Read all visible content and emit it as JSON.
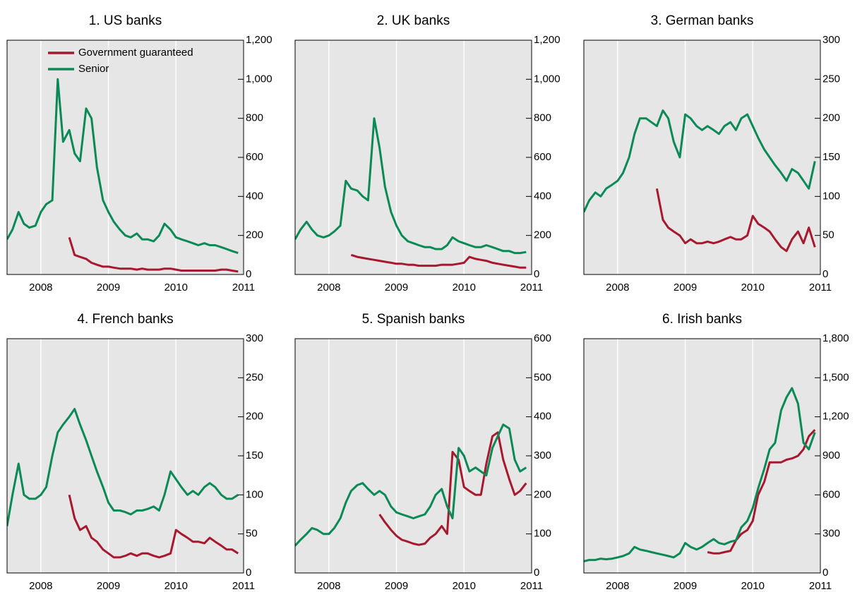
{
  "chart_data": [
    {
      "type": "line",
      "title": "1. US banks",
      "legend": "upper left",
      "x": [
        2007.5,
        2007.58,
        2007.67,
        2007.75,
        2007.83,
        2007.92,
        2008,
        2008.08,
        2008.17,
        2008.25,
        2008.33,
        2008.42,
        2008.5,
        2008.58,
        2008.67,
        2008.75,
        2008.83,
        2008.92,
        2009,
        2009.08,
        2009.17,
        2009.25,
        2009.33,
        2009.42,
        2009.5,
        2009.58,
        2009.67,
        2009.75,
        2009.83,
        2009.92,
        2010,
        2010.08,
        2010.17,
        2010.25,
        2010.33,
        2010.42,
        2010.5,
        2010.58,
        2010.67,
        2010.75,
        2010.83,
        2010.92
      ],
      "xlim": [
        2007.5,
        2011
      ],
      "xticks": [
        2008,
        2009,
        2010,
        2011
      ],
      "grid": "x",
      "ylim": [
        0,
        1200
      ],
      "yticks": [
        0,
        200,
        400,
        600,
        800,
        {
          "value": 1000,
          "label": "1,000"
        },
        {
          "value": 1200,
          "label": "1,200"
        }
      ],
      "series": [
        {
          "name": "Government guaranteed",
          "color": "#a6192e",
          "values": [
            null,
            null,
            null,
            null,
            null,
            null,
            null,
            null,
            null,
            null,
            null,
            190,
            100,
            90,
            80,
            60,
            50,
            40,
            40,
            35,
            30,
            30,
            30,
            25,
            30,
            25,
            25,
            25,
            30,
            30,
            25,
            20,
            20,
            20,
            20,
            20,
            20,
            20,
            25,
            25,
            20,
            15
          ]
        },
        {
          "name": "Senior",
          "color": "#0b8a55",
          "values": [
            180,
            230,
            320,
            260,
            240,
            250,
            320,
            360,
            380,
            1000,
            680,
            740,
            620,
            580,
            850,
            800,
            550,
            380,
            320,
            270,
            230,
            200,
            190,
            210,
            180,
            180,
            170,
            200,
            260,
            230,
            190,
            180,
            170,
            160,
            150,
            160,
            150,
            150,
            140,
            130,
            120,
            110
          ]
        }
      ]
    },
    {
      "type": "line",
      "title": "2. UK banks",
      "x": [
        2007.5,
        2007.58,
        2007.67,
        2007.75,
        2007.83,
        2007.92,
        2008,
        2008.08,
        2008.17,
        2008.25,
        2008.33,
        2008.42,
        2008.5,
        2008.58,
        2008.67,
        2008.75,
        2008.83,
        2008.92,
        2009,
        2009.08,
        2009.17,
        2009.25,
        2009.33,
        2009.42,
        2009.5,
        2009.58,
        2009.67,
        2009.75,
        2009.83,
        2009.92,
        2010,
        2010.08,
        2010.17,
        2010.25,
        2010.33,
        2010.42,
        2010.5,
        2010.58,
        2010.67,
        2010.75,
        2010.83,
        2010.92
      ],
      "xlim": [
        2007.5,
        2011
      ],
      "xticks": [
        2008,
        2009,
        2010,
        2011
      ],
      "grid": "x",
      "ylim": [
        0,
        1200
      ],
      "yticks": [
        0,
        200,
        400,
        600,
        800,
        {
          "value": 1000,
          "label": "1,000"
        },
        {
          "value": 1200,
          "label": "1,200"
        }
      ],
      "series": [
        {
          "color": "#a6192e",
          "values": [
            null,
            null,
            null,
            null,
            null,
            null,
            null,
            null,
            null,
            null,
            100,
            90,
            85,
            80,
            75,
            70,
            65,
            60,
            55,
            55,
            50,
            50,
            45,
            45,
            45,
            45,
            50,
            50,
            50,
            55,
            60,
            90,
            80,
            75,
            70,
            60,
            55,
            50,
            45,
            40,
            35,
            35
          ]
        },
        {
          "color": "#0b8a55",
          "values": [
            180,
            230,
            270,
            230,
            200,
            190,
            200,
            220,
            250,
            480,
            440,
            430,
            400,
            380,
            800,
            650,
            450,
            320,
            250,
            200,
            170,
            160,
            150,
            140,
            140,
            130,
            130,
            150,
            190,
            170,
            160,
            150,
            140,
            140,
            150,
            140,
            130,
            120,
            120,
            110,
            110,
            115
          ]
        }
      ]
    },
    {
      "type": "line",
      "title": "3. German banks",
      "x": [
        2007.5,
        2007.58,
        2007.67,
        2007.75,
        2007.83,
        2007.92,
        2008,
        2008.08,
        2008.17,
        2008.25,
        2008.33,
        2008.42,
        2008.5,
        2008.58,
        2008.67,
        2008.75,
        2008.83,
        2008.92,
        2009,
        2009.08,
        2009.17,
        2009.25,
        2009.33,
        2009.42,
        2009.5,
        2009.58,
        2009.67,
        2009.75,
        2009.83,
        2009.92,
        2010,
        2010.08,
        2010.17,
        2010.25,
        2010.33,
        2010.42,
        2010.5,
        2010.58,
        2010.67,
        2010.75,
        2010.83,
        2010.92
      ],
      "xlim": [
        2007.5,
        2011
      ],
      "xticks": [
        2008,
        2009,
        2010,
        2011
      ],
      "grid": "x",
      "ylim": [
        0,
        300
      ],
      "yticks": [
        0,
        50,
        100,
        150,
        200,
        250,
        300
      ],
      "series": [
        {
          "color": "#a6192e",
          "values": [
            null,
            null,
            null,
            null,
            null,
            null,
            null,
            null,
            null,
            null,
            null,
            null,
            null,
            110,
            70,
            60,
            55,
            50,
            40,
            45,
            40,
            40,
            42,
            40,
            42,
            45,
            48,
            45,
            45,
            50,
            75,
            65,
            60,
            55,
            45,
            35,
            30,
            45,
            55,
            40,
            60,
            35
          ]
        },
        {
          "color": "#0b8a55",
          "values": [
            80,
            95,
            105,
            100,
            110,
            115,
            120,
            130,
            150,
            180,
            200,
            200,
            195,
            190,
            210,
            200,
            170,
            150,
            205,
            200,
            190,
            185,
            190,
            185,
            180,
            190,
            195,
            185,
            200,
            205,
            190,
            175,
            160,
            150,
            140,
            130,
            120,
            135,
            130,
            120,
            110,
            145
          ]
        }
      ]
    },
    {
      "type": "line",
      "title": "4. French banks",
      "x": [
        2007.5,
        2007.58,
        2007.67,
        2007.75,
        2007.83,
        2007.92,
        2008,
        2008.08,
        2008.17,
        2008.25,
        2008.33,
        2008.42,
        2008.5,
        2008.58,
        2008.67,
        2008.75,
        2008.83,
        2008.92,
        2009,
        2009.08,
        2009.17,
        2009.25,
        2009.33,
        2009.42,
        2009.5,
        2009.58,
        2009.67,
        2009.75,
        2009.83,
        2009.92,
        2010,
        2010.08,
        2010.17,
        2010.25,
        2010.33,
        2010.42,
        2010.5,
        2010.58,
        2010.67,
        2010.75,
        2010.83,
        2010.92
      ],
      "xlim": [
        2007.5,
        2011
      ],
      "xticks": [
        2008,
        2009,
        2010,
        2011
      ],
      "grid": "x",
      "ylim": [
        0,
        300
      ],
      "yticks": [
        0,
        50,
        100,
        150,
        200,
        250,
        300
      ],
      "series": [
        {
          "color": "#a6192e",
          "values": [
            null,
            null,
            null,
            null,
            null,
            null,
            null,
            null,
            null,
            null,
            null,
            100,
            70,
            55,
            60,
            45,
            40,
            30,
            25,
            20,
            20,
            22,
            25,
            22,
            25,
            25,
            22,
            20,
            22,
            25,
            55,
            50,
            45,
            40,
            40,
            38,
            45,
            40,
            35,
            30,
            30,
            25
          ]
        },
        {
          "color": "#0b8a55",
          "values": [
            60,
            100,
            140,
            100,
            95,
            95,
            100,
            110,
            150,
            180,
            190,
            200,
            210,
            190,
            170,
            150,
            130,
            110,
            90,
            80,
            80,
            78,
            75,
            80,
            80,
            82,
            85,
            80,
            100,
            130,
            120,
            110,
            100,
            105,
            100,
            110,
            115,
            110,
            100,
            95,
            95,
            100
          ]
        }
      ]
    },
    {
      "type": "line",
      "title": "5. Spanish banks",
      "x": [
        2007.5,
        2007.58,
        2007.67,
        2007.75,
        2007.83,
        2007.92,
        2008,
        2008.08,
        2008.17,
        2008.25,
        2008.33,
        2008.42,
        2008.5,
        2008.58,
        2008.67,
        2008.75,
        2008.83,
        2008.92,
        2009,
        2009.08,
        2009.17,
        2009.25,
        2009.33,
        2009.42,
        2009.5,
        2009.58,
        2009.67,
        2009.75,
        2009.83,
        2009.92,
        2010,
        2010.08,
        2010.17,
        2010.25,
        2010.33,
        2010.42,
        2010.5,
        2010.58,
        2010.67,
        2010.75,
        2010.83,
        2010.92
      ],
      "xlim": [
        2007.5,
        2011
      ],
      "xticks": [
        2008,
        2009,
        2010,
        2011
      ],
      "grid": "x",
      "ylim": [
        0,
        600
      ],
      "yticks": [
        0,
        100,
        200,
        300,
        400,
        500,
        600
      ],
      "series": [
        {
          "color": "#a6192e",
          "values": [
            null,
            null,
            null,
            null,
            null,
            null,
            null,
            null,
            null,
            null,
            null,
            null,
            null,
            null,
            null,
            150,
            130,
            110,
            95,
            85,
            80,
            75,
            72,
            75,
            90,
            100,
            120,
            100,
            310,
            290,
            220,
            210,
            200,
            200,
            280,
            350,
            360,
            290,
            240,
            200,
            210,
            230
          ]
        },
        {
          "color": "#0b8a55",
          "values": [
            70,
            85,
            100,
            115,
            110,
            100,
            100,
            115,
            140,
            180,
            210,
            225,
            230,
            215,
            200,
            210,
            200,
            170,
            155,
            150,
            145,
            140,
            145,
            150,
            170,
            200,
            215,
            170,
            140,
            320,
            300,
            260,
            270,
            260,
            250,
            320,
            350,
            380,
            370,
            290,
            260,
            270
          ]
        }
      ]
    },
    {
      "type": "line",
      "title": "6. Irish banks",
      "x": [
        2007.5,
        2007.58,
        2007.67,
        2007.75,
        2007.83,
        2007.92,
        2008,
        2008.08,
        2008.17,
        2008.25,
        2008.33,
        2008.42,
        2008.5,
        2008.58,
        2008.67,
        2008.75,
        2008.83,
        2008.92,
        2009,
        2009.08,
        2009.17,
        2009.25,
        2009.33,
        2009.42,
        2009.5,
        2009.58,
        2009.67,
        2009.75,
        2009.83,
        2009.92,
        2010,
        2010.08,
        2010.17,
        2010.25,
        2010.33,
        2010.42,
        2010.5,
        2010.58,
        2010.67,
        2010.75,
        2010.83,
        2010.92
      ],
      "xlim": [
        2007.5,
        2011
      ],
      "xticks": [
        2008,
        2009,
        2010,
        2011
      ],
      "grid": "x",
      "ylim": [
        0,
        1800
      ],
      "yticks": [
        0,
        300,
        600,
        900,
        {
          "value": 1200,
          "label": "1,200"
        },
        {
          "value": 1500,
          "label": "1,500"
        },
        {
          "value": 1800,
          "label": "1,800"
        }
      ],
      "series": [
        {
          "color": "#a6192e",
          "values": [
            null,
            null,
            null,
            null,
            null,
            null,
            null,
            null,
            null,
            null,
            null,
            null,
            null,
            null,
            null,
            null,
            null,
            null,
            null,
            null,
            null,
            null,
            160,
            150,
            150,
            160,
            170,
            250,
            300,
            330,
            400,
            600,
            700,
            850,
            850,
            850,
            870,
            880,
            900,
            950,
            1050,
            1100
          ]
        },
        {
          "color": "#0b8a55",
          "values": [
            90,
            100,
            100,
            110,
            105,
            110,
            120,
            130,
            150,
            200,
            180,
            170,
            160,
            150,
            140,
            130,
            120,
            150,
            230,
            200,
            180,
            200,
            230,
            260,
            230,
            220,
            240,
            250,
            350,
            400,
            500,
            650,
            800,
            950,
            1000,
            1250,
            1350,
            1420,
            1300,
            1000,
            950,
            1080
          ]
        }
      ]
    }
  ]
}
